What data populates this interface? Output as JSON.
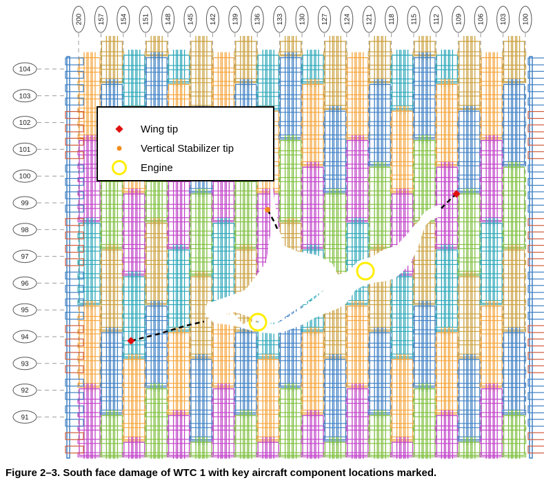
{
  "column_labels": [
    "200",
    "157",
    "154",
    "151",
    "148",
    "145",
    "142",
    "139",
    "136",
    "133",
    "130",
    "127",
    "124",
    "121",
    "118",
    "115",
    "112",
    "109",
    "106",
    "103",
    "100"
  ],
  "floor_labels": [
    "104",
    "103",
    "102",
    "101",
    "100",
    "99",
    "98",
    "97",
    "96",
    "95",
    "94",
    "93",
    "92",
    "91"
  ],
  "legend": {
    "wing_tip": "Wing tip",
    "stabilizer_tip": "Vertical Stabilizer tip",
    "engine": "Engine"
  },
  "colors": {
    "wing_tip": "#e01010",
    "stabilizer_tip": "#f28c1e",
    "engine": "#ffee00",
    "panel_blue": "#3d7fc4",
    "panel_teal": "#2aa7b8",
    "panel_green": "#7fbf3f",
    "panel_orange": "#f5a53c",
    "panel_gold": "#caa040",
    "panel_magenta": "#c040c8",
    "edge_red": "#d0593a"
  },
  "caption": "Figure 2–3.  South face damage of WTC 1 with key aircraft component locations marked."
}
